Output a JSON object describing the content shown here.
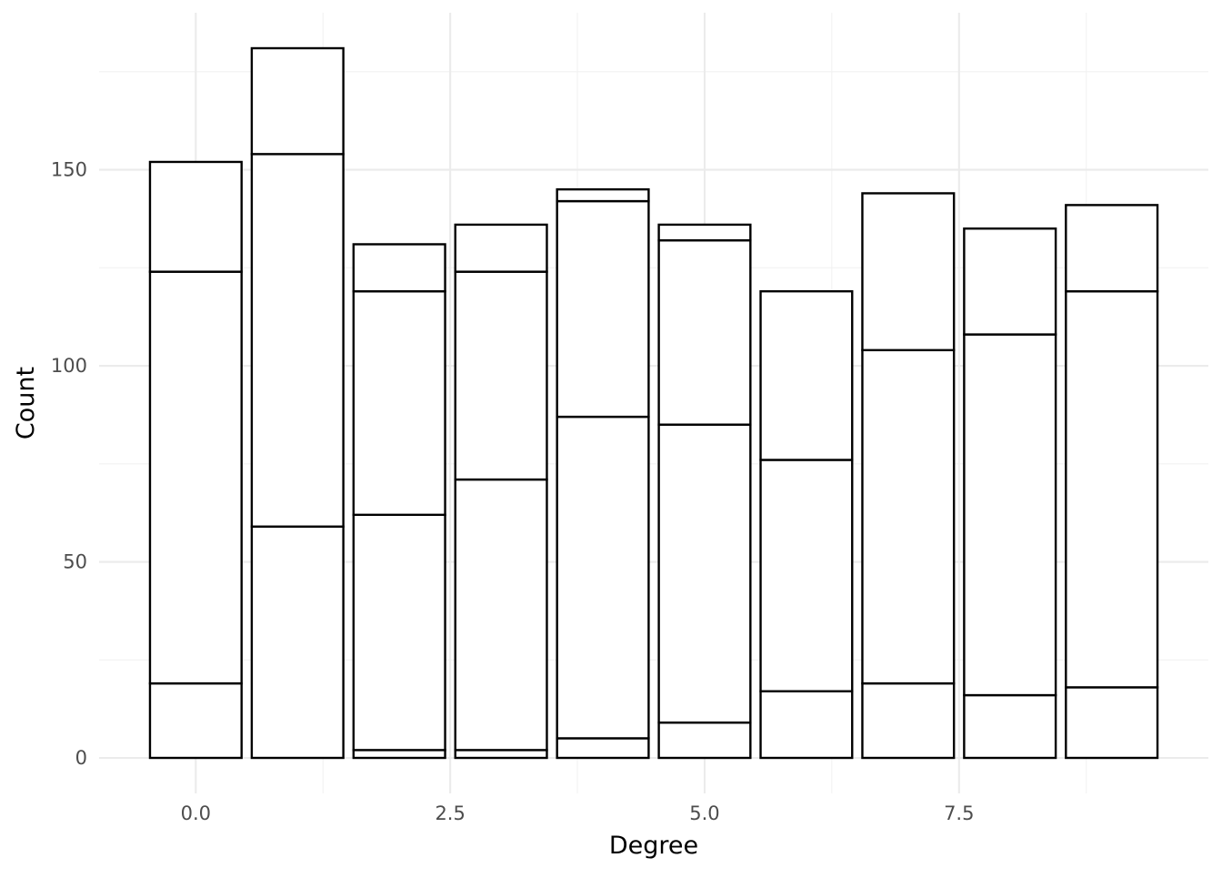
{
  "chart_data": {
    "type": "bar",
    "stacked": true,
    "title": "",
    "xlabel": "Degree",
    "ylabel": "Count",
    "x": [
      0,
      1,
      2,
      3,
      4,
      5,
      6,
      7,
      8,
      9
    ],
    "bar_width": 0.9,
    "stack_boundaries": [
      [
        19,
        124,
        152
      ],
      [
        59,
        154,
        181
      ],
      [
        2,
        62,
        119,
        131
      ],
      [
        2,
        71,
        124,
        136
      ],
      [
        5,
        87,
        142,
        145
      ],
      [
        9,
        85,
        132,
        136
      ],
      [
        17,
        76,
        119
      ],
      [
        19,
        104,
        144
      ],
      [
        16,
        108,
        135
      ],
      [
        18,
        119,
        141
      ]
    ],
    "totals": [
      152,
      181,
      131,
      136,
      145,
      136,
      119,
      144,
      135,
      141
    ],
    "xlim": [
      -0.95,
      9.95
    ],
    "ylim": [
      -9.05,
      190.05
    ],
    "x_ticks": [
      0,
      2.5,
      5,
      7.5
    ],
    "x_tick_labels": [
      "0.0",
      "2.5",
      "5.0",
      "7.5"
    ],
    "y_ticks": [
      0,
      50,
      100,
      150
    ],
    "y_tick_labels": [
      "0",
      "50",
      "100",
      "150"
    ],
    "grid": true,
    "legend": "none",
    "colors": {
      "bar_fill": "#ffffff",
      "bar_outline": "#000000",
      "grid_major": "#ebebeb",
      "grid_minor": "#f2f2f2",
      "tick_text": "#4d4d4d",
      "title_text": "#000000"
    }
  }
}
